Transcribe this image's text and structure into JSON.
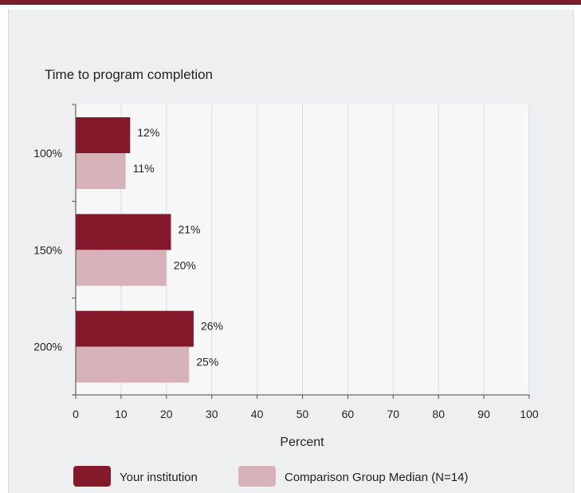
{
  "colors": {
    "topbar": "#7a1c2b",
    "series1": "#84192c",
    "series2": "#d7b3b9",
    "plot_bg": "#f7f7f8",
    "grid": "#dcdde2"
  },
  "chart_data": {
    "type": "bar",
    "orientation": "horizontal",
    "title": "Time to program completion",
    "xlabel": "Percent",
    "ylabel": "",
    "xlim": [
      0,
      100
    ],
    "xticks": [
      "0",
      "10",
      "20",
      "30",
      "40",
      "50",
      "60",
      "70",
      "80",
      "90",
      "100"
    ],
    "categories": [
      "100%",
      "150%",
      "200%"
    ],
    "series": [
      {
        "name": "Your institution",
        "values": [
          12,
          21,
          26
        ],
        "labels": [
          "12%",
          "21%",
          "26%"
        ]
      },
      {
        "name": "Comparison Group Median (N=14)",
        "values": [
          11,
          20,
          25
        ],
        "labels": [
          "11%",
          "20%",
          "25%"
        ]
      }
    ],
    "grid": true,
    "legend": "bottom"
  }
}
